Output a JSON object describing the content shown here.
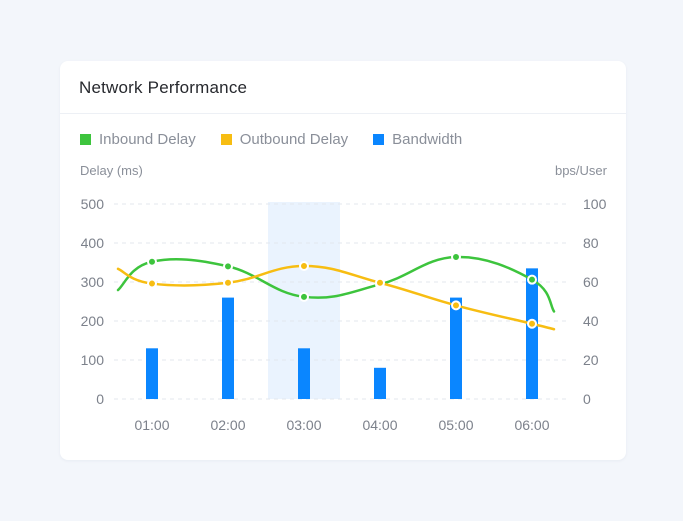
{
  "card": {
    "title": "Network Performance"
  },
  "chart_data": {
    "type": "bar+line",
    "categories": [
      "01:00",
      "02:00",
      "03:00",
      "04:00",
      "05:00",
      "06:00"
    ],
    "highlighted_category": "03:00",
    "left_axis": {
      "label": "Delay (ms)",
      "range": [
        0,
        500
      ],
      "ticks": [
        0,
        100,
        200,
        300,
        400,
        500
      ]
    },
    "right_axis": {
      "label": "bps/User",
      "range": [
        0,
        100
      ],
      "ticks": [
        0,
        20,
        40,
        60,
        80,
        100
      ]
    },
    "series": [
      {
        "name": "Inbound Delay",
        "type": "line",
        "axis": "left",
        "color": "#3dc43d",
        "values": [
          352,
          340,
          262,
          294,
          364,
          306
        ]
      },
      {
        "name": "Outbound Delay",
        "type": "line",
        "axis": "left",
        "color": "#f7bd12",
        "values": [
          296,
          298,
          341,
          298,
          240,
          193
        ]
      },
      {
        "name": "Bandwidth",
        "type": "bar",
        "axis": "right",
        "color": "#0a86ff",
        "values": [
          26,
          52,
          26,
          16,
          52,
          67
        ]
      }
    ],
    "grid": true,
    "legend_position": "top-left"
  }
}
